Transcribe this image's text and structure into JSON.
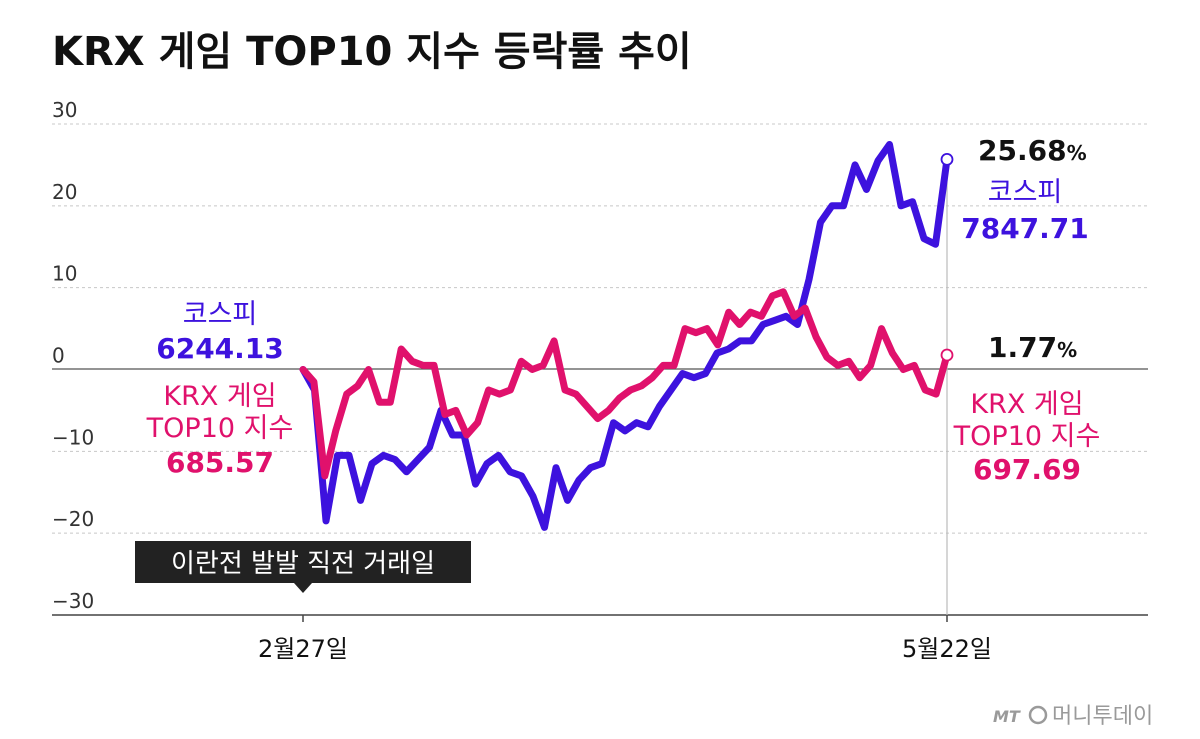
{
  "chart_data": {
    "type": "line",
    "title": "KRX 게임 TOP10 지수 등락률 추이",
    "ylim": [
      -30,
      30
    ],
    "yticks": [
      "30",
      "20",
      "10",
      "0",
      "−10",
      "−20",
      "−30"
    ],
    "ytick_values": [
      30,
      20,
      10,
      0,
      -10,
      -20,
      -30
    ],
    "grid": true,
    "x_tick_labels": [
      "2월27일",
      "5월22일"
    ],
    "series": [
      {
        "name": "코스피",
        "color": "#3d12de",
        "start_label": "6244.13",
        "end_label": "7847.71",
        "end_pct": "25.68",
        "values": [
          0,
          -2.5,
          -18.5,
          -10.5,
          -10.5,
          -16,
          -11.5,
          -10.5,
          -11,
          -12.5,
          -11,
          -9.5,
          -5,
          -8,
          -8,
          -14,
          -11.5,
          -10.5,
          -12.5,
          -13,
          -15.5,
          -19.3,
          -12,
          -16,
          -13.5,
          -12,
          -11.5,
          -6.5,
          -7.5,
          -6.5,
          -7,
          -4.5,
          -2.5,
          -0.5,
          -1,
          -0.5,
          2,
          2.5,
          3.5,
          3.5,
          5.5,
          6,
          6.5,
          5.5,
          11,
          18,
          20,
          20,
          25,
          22,
          25.5,
          27.5,
          20,
          20.5,
          16,
          15.3,
          25.68
        ]
      },
      {
        "name": "KRX 게임 TOP10 지수",
        "color": "#e0116c",
        "start_label": "685.57",
        "end_label": "697.69",
        "end_pct": "1.77",
        "values": [
          0,
          -1.5,
          -13,
          -7.5,
          -3,
          -2,
          0,
          -4,
          -4,
          2.5,
          1,
          0.5,
          0.5,
          -5.5,
          -5,
          -8,
          -6.5,
          -2.5,
          -3,
          -2.5,
          1,
          0,
          0.5,
          3.5,
          -2.5,
          -3,
          -4.5,
          -6,
          -5,
          -3.5,
          -2.5,
          -2,
          -1,
          0.5,
          0.5,
          5,
          4.5,
          5,
          3,
          7,
          5.5,
          7,
          6.5,
          9,
          9.5,
          6.5,
          7.5,
          4,
          1.5,
          0.5,
          1,
          -1,
          0.5,
          5,
          2,
          0,
          0.5,
          -2.5,
          -3,
          1.77
        ]
      }
    ],
    "annotation": "이란전 발발 직전 거래일"
  },
  "labels": {
    "kospi_name_left": "코스피",
    "kospi_value_left": "6244.13",
    "krx_name_left_1": "KRX 게임",
    "krx_name_left_2": "TOP10 지수",
    "krx_value_left": "685.57",
    "kospi_pct": "25.68",
    "kospi_name_right": "코스피",
    "kospi_value_right": "7847.71",
    "krx_pct": "1.77",
    "krx_name_right_1": "KRX 게임",
    "krx_name_right_2": "TOP10 지수",
    "krx_value_right": "697.69",
    "percent_sign": "%"
  },
  "watermark": {
    "mark": "MT",
    "text": "머니투데이"
  }
}
